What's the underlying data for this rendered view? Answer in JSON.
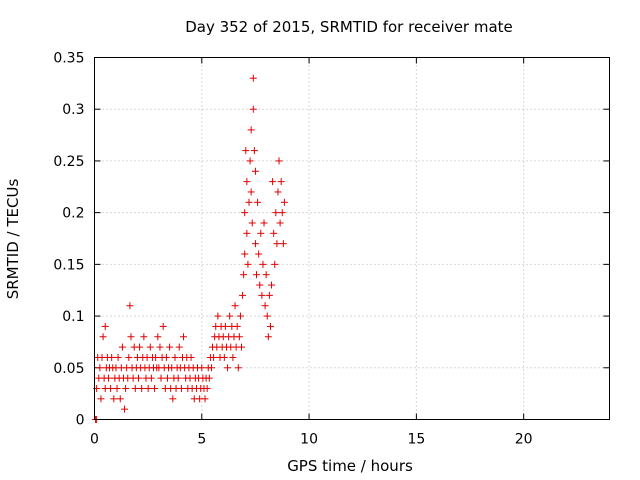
{
  "chart_data": {
    "type": "scatter",
    "title": "Day 352 of 2015, SRMTID for receiver mate",
    "xlabel": "GPS time / hours",
    "ylabel": "SRMTID / TECUs",
    "xlim": [
      0,
      24
    ],
    "ylim": [
      0,
      0.35
    ],
    "xticks": [
      0,
      5,
      10,
      15,
      20
    ],
    "xtick_labels": [
      "0",
      "5",
      "10",
      "15",
      "20"
    ],
    "yticks": [
      0,
      0.05,
      0.1,
      0.15,
      0.2,
      0.25,
      0.3,
      0.35
    ],
    "ytick_labels": [
      "0",
      "0.05",
      "0.1",
      "0.15",
      "0.2",
      "0.25",
      "0.3",
      "0.35"
    ],
    "grid": true,
    "marker": "plus",
    "color": "#e00000",
    "series": [
      {
        "name": "SRMTID",
        "points": [
          [
            0.05,
            0.0
          ],
          [
            0.1,
            0.0
          ],
          [
            0.1,
            0.03
          ],
          [
            0.15,
            0.06
          ],
          [
            0.2,
            0.04
          ],
          [
            0.25,
            0.05
          ],
          [
            0.3,
            0.02
          ],
          [
            0.35,
            0.06
          ],
          [
            0.4,
            0.08
          ],
          [
            0.45,
            0.04
          ],
          [
            0.5,
            0.09
          ],
          [
            0.5,
            0.03
          ],
          [
            0.55,
            0.05
          ],
          [
            0.6,
            0.06
          ],
          [
            0.65,
            0.04
          ],
          [
            0.7,
            0.05
          ],
          [
            0.75,
            0.03
          ],
          [
            0.8,
            0.06
          ],
          [
            0.85,
            0.05
          ],
          [
            0.9,
            0.02
          ],
          [
            0.95,
            0.04
          ],
          [
            1.0,
            0.05
          ],
          [
            1.05,
            0.03
          ],
          [
            1.1,
            0.06
          ],
          [
            1.15,
            0.04
          ],
          [
            1.2,
            0.02
          ],
          [
            1.25,
            0.05
          ],
          [
            1.3,
            0.07
          ],
          [
            1.35,
            0.04
          ],
          [
            1.4,
            0.01
          ],
          [
            1.45,
            0.03
          ],
          [
            1.5,
            0.05
          ],
          [
            1.55,
            0.04
          ],
          [
            1.6,
            0.06
          ],
          [
            1.65,
            0.11
          ],
          [
            1.7,
            0.08
          ],
          [
            1.75,
            0.05
          ],
          [
            1.8,
            0.04
          ],
          [
            1.85,
            0.07
          ],
          [
            1.9,
            0.03
          ],
          [
            1.95,
            0.05
          ],
          [
            2.0,
            0.06
          ],
          [
            2.05,
            0.04
          ],
          [
            2.1,
            0.07
          ],
          [
            2.15,
            0.05
          ],
          [
            2.2,
            0.03
          ],
          [
            2.25,
            0.06
          ],
          [
            2.3,
            0.08
          ],
          [
            2.35,
            0.05
          ],
          [
            2.4,
            0.04
          ],
          [
            2.45,
            0.06
          ],
          [
            2.5,
            0.03
          ],
          [
            2.55,
            0.05
          ],
          [
            2.6,
            0.07
          ],
          [
            2.65,
            0.04
          ],
          [
            2.7,
            0.06
          ],
          [
            2.75,
            0.05
          ],
          [
            2.8,
            0.03
          ],
          [
            2.85,
            0.06
          ],
          [
            2.9,
            0.05
          ],
          [
            2.95,
            0.08
          ],
          [
            3.0,
            0.05
          ],
          [
            3.05,
            0.07
          ],
          [
            3.1,
            0.04
          ],
          [
            3.15,
            0.06
          ],
          [
            3.2,
            0.09
          ],
          [
            3.25,
            0.05
          ],
          [
            3.3,
            0.03
          ],
          [
            3.35,
            0.06
          ],
          [
            3.4,
            0.04
          ],
          [
            3.45,
            0.05
          ],
          [
            3.5,
            0.07
          ],
          [
            3.55,
            0.03
          ],
          [
            3.6,
            0.05
          ],
          [
            3.65,
            0.02
          ],
          [
            3.7,
            0.04
          ],
          [
            3.75,
            0.06
          ],
          [
            3.8,
            0.03
          ],
          [
            3.85,
            0.05
          ],
          [
            3.9,
            0.04
          ],
          [
            3.95,
            0.07
          ],
          [
            4.0,
            0.05
          ],
          [
            4.05,
            0.03
          ],
          [
            4.1,
            0.06
          ],
          [
            4.15,
            0.08
          ],
          [
            4.2,
            0.05
          ],
          [
            4.25,
            0.04
          ],
          [
            4.3,
            0.06
          ],
          [
            4.35,
            0.03
          ],
          [
            4.4,
            0.05
          ],
          [
            4.45,
            0.04
          ],
          [
            4.5,
            0.06
          ],
          [
            4.55,
            0.03
          ],
          [
            4.6,
            0.05
          ],
          [
            4.65,
            0.02
          ],
          [
            4.7,
            0.04
          ],
          [
            4.75,
            0.03
          ],
          [
            4.8,
            0.05
          ],
          [
            4.85,
            0.04
          ],
          [
            4.9,
            0.02
          ],
          [
            4.95,
            0.03
          ],
          [
            5.0,
            0.05
          ],
          [
            5.05,
            0.04
          ],
          [
            5.1,
            0.03
          ],
          [
            5.15,
            0.02
          ],
          [
            5.2,
            0.04
          ],
          [
            5.25,
            0.03
          ],
          [
            5.3,
            0.05
          ],
          [
            5.35,
            0.04
          ],
          [
            5.4,
            0.06
          ],
          [
            5.45,
            0.05
          ],
          [
            5.5,
            0.07
          ],
          [
            5.55,
            0.06
          ],
          [
            5.6,
            0.08
          ],
          [
            5.65,
            0.09
          ],
          [
            5.7,
            0.07
          ],
          [
            5.75,
            0.1
          ],
          [
            5.8,
            0.08
          ],
          [
            5.85,
            0.06
          ],
          [
            5.9,
            0.09
          ],
          [
            5.95,
            0.07
          ],
          [
            6.0,
            0.08
          ],
          [
            6.05,
            0.06
          ],
          [
            6.1,
            0.09
          ],
          [
            6.15,
            0.07
          ],
          [
            6.2,
            0.05
          ],
          [
            6.25,
            0.08
          ],
          [
            6.3,
            0.1
          ],
          [
            6.35,
            0.07
          ],
          [
            6.4,
            0.09
          ],
          [
            6.45,
            0.06
          ],
          [
            6.5,
            0.08
          ],
          [
            6.55,
            0.11
          ],
          [
            6.6,
            0.07
          ],
          [
            6.65,
            0.09
          ],
          [
            6.7,
            0.05
          ],
          [
            6.75,
            0.08
          ],
          [
            6.8,
            0.1
          ],
          [
            6.85,
            0.07
          ],
          [
            6.9,
            0.12
          ],
          [
            6.95,
            0.14
          ],
          [
            7.0,
            0.16
          ],
          [
            7.0,
            0.2
          ],
          [
            7.05,
            0.26
          ],
          [
            7.1,
            0.23
          ],
          [
            7.1,
            0.18
          ],
          [
            7.15,
            0.15
          ],
          [
            7.2,
            0.21
          ],
          [
            7.25,
            0.25
          ],
          [
            7.3,
            0.28
          ],
          [
            7.3,
            0.22
          ],
          [
            7.35,
            0.19
          ],
          [
            7.4,
            0.33
          ],
          [
            7.4,
            0.3
          ],
          [
            7.45,
            0.26
          ],
          [
            7.5,
            0.24
          ],
          [
            7.5,
            0.17
          ],
          [
            7.55,
            0.14
          ],
          [
            7.6,
            0.21
          ],
          [
            7.65,
            0.16
          ],
          [
            7.7,
            0.13
          ],
          [
            7.75,
            0.18
          ],
          [
            7.8,
            0.12
          ],
          [
            7.85,
            0.15
          ],
          [
            7.9,
            0.19
          ],
          [
            7.95,
            0.11
          ],
          [
            8.0,
            0.14
          ],
          [
            8.05,
            0.1
          ],
          [
            8.1,
            0.08
          ],
          [
            8.15,
            0.12
          ],
          [
            8.2,
            0.09
          ],
          [
            8.25,
            0.13
          ],
          [
            8.3,
            0.23
          ],
          [
            8.35,
            0.18
          ],
          [
            8.4,
            0.15
          ],
          [
            8.45,
            0.2
          ],
          [
            8.5,
            0.17
          ],
          [
            8.55,
            0.22
          ],
          [
            8.6,
            0.25
          ],
          [
            8.65,
            0.19
          ],
          [
            8.7,
            0.23
          ],
          [
            8.75,
            0.2
          ],
          [
            8.8,
            0.17
          ],
          [
            8.85,
            0.21
          ]
        ]
      }
    ]
  }
}
